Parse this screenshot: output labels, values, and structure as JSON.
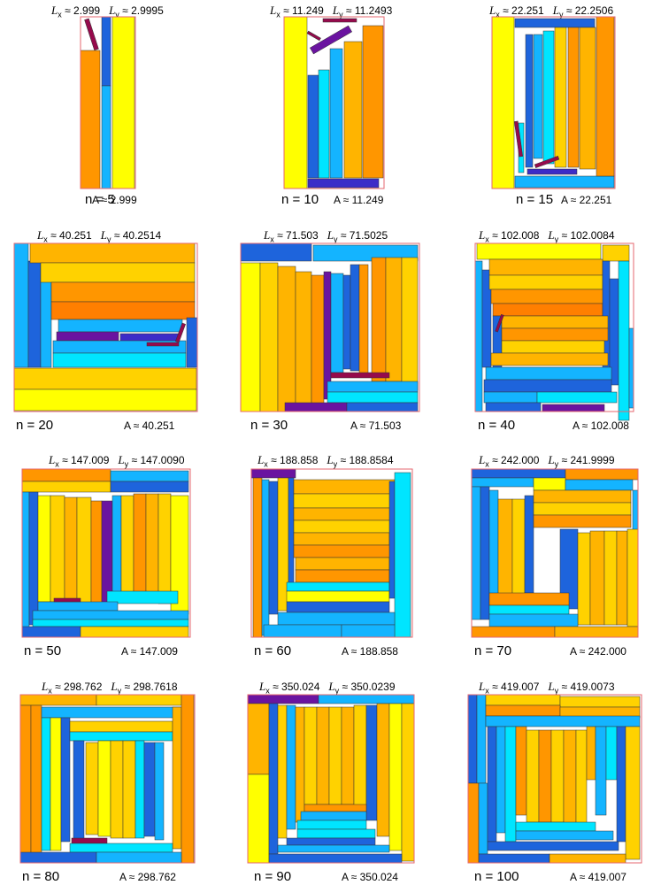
{
  "colors": {
    "yellow": "#ffff00",
    "gold": "#ffd200",
    "amber": "#ffb400",
    "orange": "#ff9600",
    "darkorange": "#ff7f00",
    "cyan": "#00e5ff",
    "sky": "#14b4ff",
    "blue": "#1e64dc",
    "indigo": "#3c2cc8",
    "purple": "#6a14a0",
    "maroon": "#960a4c",
    "frame": "#e6676f"
  },
  "lx_prefix": "≈",
  "ly_prefix": "≈",
  "panels": [
    {
      "n": 5,
      "n_label": "n = 5",
      "a_label": "A ≈ 2.999",
      "lx": "2.999",
      "ly": "2.9995"
    },
    {
      "n": 10,
      "n_label": "n = 10",
      "a_label": "A ≈ 11.249",
      "lx": "11.249",
      "ly": "11.2493"
    },
    {
      "n": 15,
      "n_label": "n = 15",
      "a_label": "A ≈ 22.251",
      "lx": "22.251",
      "ly": "22.2506"
    },
    {
      "n": 20,
      "n_label": "n = 20",
      "a_label": "A ≈ 40.251",
      "lx": "40.251",
      "ly": "40.2514"
    },
    {
      "n": 30,
      "n_label": "n = 30",
      "a_label": "A ≈ 71.503",
      "lx": "71.503",
      "ly": "71.5025"
    },
    {
      "n": 40,
      "n_label": "n = 40",
      "a_label": "A ≈ 102.008",
      "lx": "102.008",
      "ly": "102.0084"
    },
    {
      "n": 50,
      "n_label": "n = 50",
      "a_label": "A ≈ 147.009",
      "lx": "147.009",
      "ly": "147.0090"
    },
    {
      "n": 60,
      "n_label": "n = 60",
      "a_label": "A ≈ 188.858",
      "lx": "188.858",
      "ly": "188.8584"
    },
    {
      "n": 70,
      "n_label": "n = 70",
      "a_label": "A ≈ 242.000",
      "lx": "242.000",
      "ly": "241.9999"
    },
    {
      "n": 80,
      "n_label": "n = 80",
      "a_label": "A ≈ 298.762",
      "lx": "298.762",
      "ly": "298.7618"
    },
    {
      "n": 90,
      "n_label": "n = 90",
      "a_label": "A ≈ 350.024",
      "lx": "350.024",
      "ly": "350.0239"
    },
    {
      "n": 100,
      "n_label": "n = 100",
      "a_label": "A ≈ 419.007",
      "lx": "419.007",
      "ly": "419.0073"
    }
  ]
}
